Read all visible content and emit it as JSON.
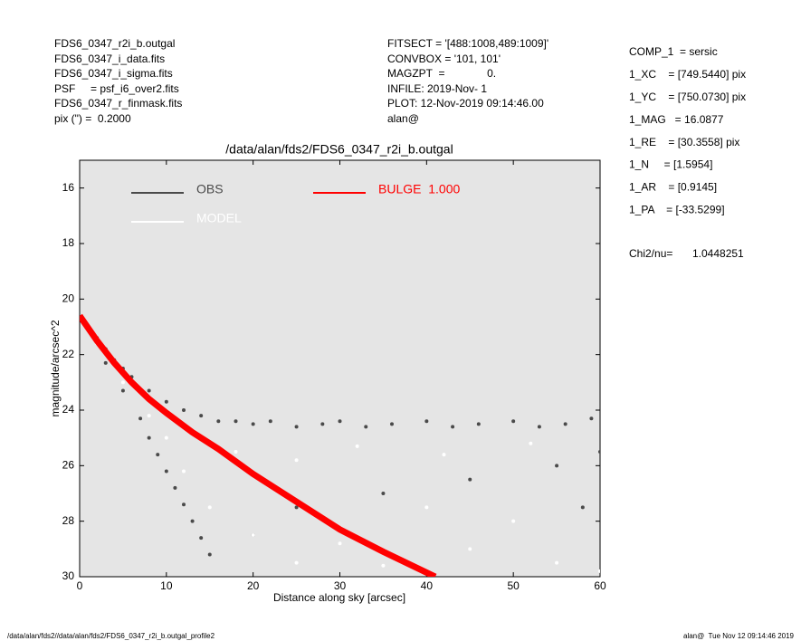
{
  "header": {
    "left": [
      "FDS6_0347_r2i_b.outgal",
      "FDS6_0347_i_data.fits",
      "FDS6_0347_i_sigma.fits",
      "PSF     = psf_i6_over2.fits",
      "FDS6_0347_r_finmask.fits",
      "pix (\") =  0.2000"
    ],
    "middle": [
      "FITSECT = '[488:1008,489:1009]'",
      "CONVBOX = '101, 101'",
      "MAGZPT  =              0.",
      "INFILE: 2019-Nov- 1",
      "PLOT: 12-Nov-2019 09:14:46.00",
      "alan@"
    ],
    "right": [
      "COMP_1  = sersic",
      "1_XC    = [749.5440] pix",
      "1_YC    = [750.0730] pix",
      "1_MAG   = 16.0877",
      "1_RE    = [30.3558] pix",
      "1_N     = [1.5954]",
      "1_AR    = [0.9145]",
      "1_PA    = [-33.5299]"
    ],
    "chi2_label": "Chi2/nu=",
    "chi2_value": "1.0448251"
  },
  "footer": {
    "left": "/data/alan/fds2//data/alan/fds2/FDS6_0347_r2i_b.outgal_profile2",
    "right": "alan@  Tue Nov 12 09:14:46 2019"
  },
  "chart_data": {
    "type": "scatter",
    "title": "/data/alan/fds2/FDS6_0347_r2i_b.outgal",
    "x_label": "Distance along sky [arcsec]",
    "y_label": "magnitude/arcsec^2",
    "xlim": [
      0,
      60
    ],
    "xticks": [
      0,
      10,
      20,
      30,
      40,
      50,
      60
    ],
    "ylim": [
      30,
      15
    ],
    "yticks": [
      16,
      18,
      20,
      22,
      24,
      26,
      28,
      30
    ],
    "background": "#e5e5e5",
    "series": [
      {
        "name": "OBS",
        "color": "#4a4a4a",
        "line": false,
        "x": [
          1,
          2,
          3,
          4,
          5,
          6,
          8,
          10,
          12,
          14,
          16,
          18,
          20,
          22,
          25,
          28,
          30,
          33,
          36,
          40,
          43,
          46,
          50,
          53,
          56,
          59,
          60,
          3,
          5,
          7,
          8,
          9,
          10,
          11,
          12,
          13,
          14,
          15,
          20,
          25,
          35,
          45,
          55,
          58
        ],
        "values": [
          21.0,
          21.4,
          21.8,
          22.2,
          22.5,
          22.8,
          23.3,
          23.7,
          24.0,
          24.2,
          24.4,
          24.4,
          24.5,
          24.4,
          24.6,
          24.5,
          24.4,
          24.6,
          24.5,
          24.4,
          24.6,
          24.5,
          24.4,
          24.6,
          24.5,
          24.3,
          25.5,
          22.3,
          23.3,
          24.3,
          25.0,
          25.6,
          26.2,
          26.8,
          27.4,
          28.0,
          28.6,
          29.2,
          28.5,
          27.5,
          27.0,
          26.5,
          26.0,
          27.5
        ]
      },
      {
        "name": "MODEL",
        "color": "#ffffff",
        "line": false,
        "x": [
          2,
          5,
          8,
          10,
          12,
          15,
          18,
          20,
          25,
          25,
          30,
          32,
          35,
          40,
          42,
          45,
          50,
          52,
          55,
          60
        ],
        "values": [
          21.6,
          23.0,
          24.2,
          25.0,
          26.2,
          27.5,
          25.5,
          28.5,
          29.5,
          25.8,
          28.8,
          25.3,
          29.6,
          27.5,
          25.6,
          29.0,
          28.0,
          25.2,
          29.5,
          29.8
        ]
      },
      {
        "name": "BULGE  1.000",
        "color": "#ff0000",
        "line": true,
        "x": [
          0,
          2,
          4,
          6,
          8,
          10,
          13,
          16,
          20,
          25,
          30,
          35,
          41
        ],
        "values": [
          20.6,
          21.5,
          22.3,
          23.0,
          23.6,
          24.1,
          24.8,
          25.4,
          26.3,
          27.3,
          28.3,
          29.1,
          30.0
        ]
      }
    ]
  }
}
